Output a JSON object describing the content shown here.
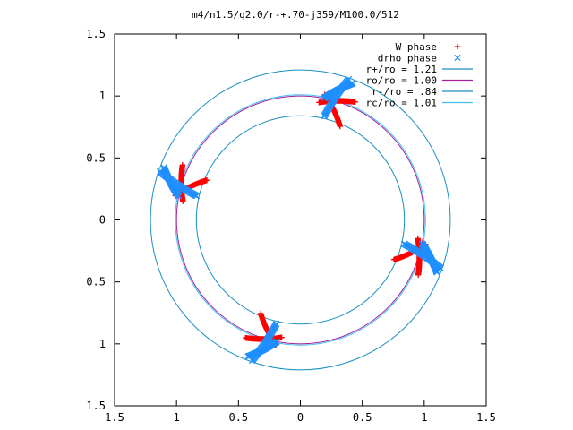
{
  "chart_data": {
    "type": "scatter",
    "title": "m4/n1.5/q2.0/r-+.70-j359/M100.0/512",
    "xlabel": "",
    "ylabel": "",
    "xlim": [
      -1.5,
      1.5
    ],
    "ylim": [
      -1.5,
      1.5
    ],
    "x_ticks": [
      -1.5,
      -1,
      -0.5,
      0,
      0.5,
      1,
      1.5
    ],
    "y_ticks": [
      -1.5,
      -1,
      -0.5,
      0,
      0.5,
      1,
      1.5
    ],
    "x_tick_labels": [
      "1.5",
      "1",
      "0.5",
      "0",
      "0.5",
      "1",
      "1.5"
    ],
    "y_tick_labels": [
      "1.5",
      "1",
      "0.5",
      "0",
      "0.5",
      "1",
      "1.5"
    ],
    "grid": false,
    "legend_position": "top-right",
    "series": [
      {
        "name": "W phase",
        "kind": "points",
        "marker": "plus",
        "color": "#ff0000",
        "clusters": [
          {
            "center_angle_deg": 73,
            "arms": [
              {
                "from_r": 0.82,
                "to_r": 1.03,
                "curl_deg": 12
              },
              {
                "from_r": 0.96,
                "to_r": 1.05,
                "curl_deg": 16
              }
            ]
          },
          {
            "center_angle_deg": 163,
            "arms": [
              {
                "from_r": 0.82,
                "to_r": 1.03,
                "curl_deg": 12
              },
              {
                "from_r": 0.96,
                "to_r": 1.05,
                "curl_deg": 16
              }
            ]
          },
          {
            "center_angle_deg": 253,
            "arms": [
              {
                "from_r": 0.82,
                "to_r": 1.03,
                "curl_deg": 12
              },
              {
                "from_r": 0.96,
                "to_r": 1.05,
                "curl_deg": 16
              }
            ]
          },
          {
            "center_angle_deg": 343,
            "arms": [
              {
                "from_r": 0.82,
                "to_r": 1.03,
                "curl_deg": 12
              },
              {
                "from_r": 0.96,
                "to_r": 1.05,
                "curl_deg": 16
              }
            ]
          }
        ]
      },
      {
        "name": "drho phase",
        "kind": "points",
        "marker": "cross",
        "color": "#1f8fff",
        "clusters": [
          {
            "center_angle_deg": 74,
            "arms": [
              {
                "from_r": 0.86,
                "to_r": 1.2,
                "curl_deg": -6
              },
              {
                "from_r": 1.0,
                "to_r": 1.18,
                "curl_deg": 10
              }
            ]
          },
          {
            "center_angle_deg": 164,
            "arms": [
              {
                "from_r": 0.86,
                "to_r": 1.2,
                "curl_deg": -6
              },
              {
                "from_r": 1.0,
                "to_r": 1.18,
                "curl_deg": 10
              }
            ]
          },
          {
            "center_angle_deg": 254,
            "arms": [
              {
                "from_r": 0.86,
                "to_r": 1.2,
                "curl_deg": -6
              },
              {
                "from_r": 1.0,
                "to_r": 1.18,
                "curl_deg": 10
              }
            ]
          },
          {
            "center_angle_deg": 344,
            "arms": [
              {
                "from_r": 0.86,
                "to_r": 1.2,
                "curl_deg": -6
              },
              {
                "from_r": 1.0,
                "to_r": 1.18,
                "curl_deg": 10
              }
            ]
          }
        ]
      },
      {
        "name": "r+/ro = 1.21",
        "kind": "circle",
        "radius": 1.21,
        "color": "#1a8fc0"
      },
      {
        "name": "ro/ro = 1.00",
        "kind": "circle",
        "radius": 1.0,
        "color": "#a020a0"
      },
      {
        "name": "r-/ro = .84",
        "kind": "circle",
        "radius": 0.84,
        "color": "#1a8fc0"
      },
      {
        "name": "rc/ro = 1.01",
        "kind": "circle",
        "radius": 1.01,
        "color": "#40c0f0"
      }
    ]
  }
}
